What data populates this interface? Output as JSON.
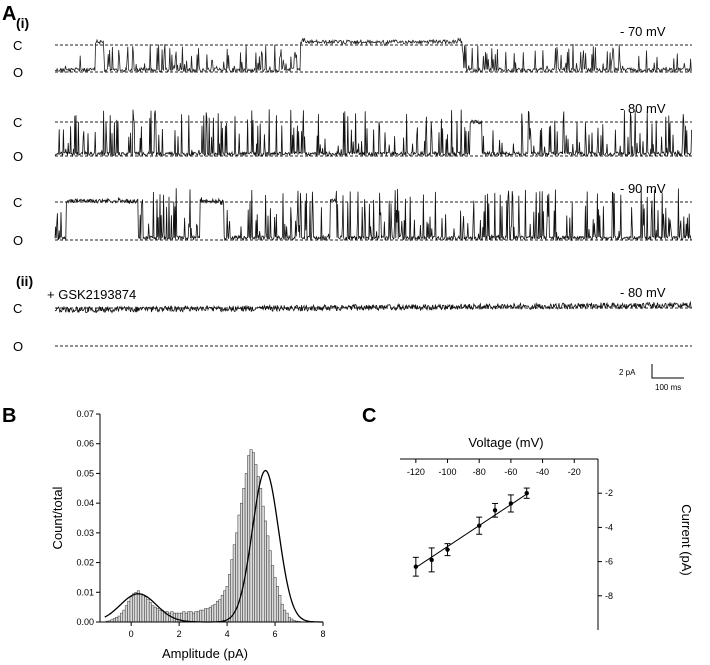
{
  "panels": {
    "a": "A",
    "a_i": "(i)",
    "a_ii": "(ii)",
    "b": "B",
    "c": "C"
  },
  "traces": [
    {
      "voltage": "- 70 mV",
      "closed": "C",
      "open": "O"
    },
    {
      "voltage": "- 80 mV",
      "closed": "C",
      "open": "O"
    },
    {
      "voltage": "- 90 mV",
      "closed": "C",
      "open": "O"
    },
    {
      "voltage": "- 80 mV",
      "closed": "C",
      "open": "O",
      "drug": "+ GSK2193874"
    }
  ],
  "scale_bar": {
    "current": "2 pA",
    "time": "100 ms"
  },
  "chart_data": [
    {
      "type": "bar",
      "panel": "B",
      "title": "",
      "xlabel": "Amplitude (pA)",
      "ylabel": "Count/total",
      "xlim": [
        -1.3,
        8
      ],
      "ylim": [
        0,
        0.07
      ],
      "x_ticks": [
        "0",
        "2",
        "4",
        "6",
        "8"
      ],
      "y_ticks": [
        "0.00",
        "0.01",
        "0.02",
        "0.03",
        "0.04",
        "0.05",
        "0.06",
        "0.07"
      ],
      "bins_x": [
        -1.0,
        -0.9,
        -0.8,
        -0.7,
        -0.6,
        -0.5,
        -0.4,
        -0.3,
        -0.2,
        -0.1,
        0.0,
        0.1,
        0.2,
        0.3,
        0.4,
        0.5,
        0.6,
        0.7,
        0.8,
        0.9,
        1.0,
        1.1,
        1.2,
        1.3,
        1.4,
        1.5,
        1.6,
        1.7,
        1.8,
        1.9,
        2.0,
        2.1,
        2.2,
        2.3,
        2.4,
        2.5,
        2.6,
        2.7,
        2.8,
        2.9,
        3.0,
        3.1,
        3.2,
        3.3,
        3.4,
        3.5,
        3.6,
        3.7,
        3.8,
        3.9,
        4.0,
        4.1,
        4.2,
        4.3,
        4.4,
        4.5,
        4.6,
        4.7,
        4.8,
        4.9,
        5.0,
        5.1,
        5.2,
        5.3,
        5.4,
        5.5,
        5.6,
        5.7,
        5.8,
        5.9,
        6.0,
        6.1,
        6.2,
        6.3,
        6.4,
        6.5,
        6.6,
        6.7,
        6.8,
        6.9,
        7.0,
        7.1,
        7.2,
        7.3
      ],
      "bins_y": [
        0.0003,
        0.0004,
        0.0008,
        0.0012,
        0.0016,
        0.002,
        0.003,
        0.004,
        0.0055,
        0.007,
        0.0085,
        0.0095,
        0.01,
        0.0105,
        0.0095,
        0.009,
        0.0085,
        0.0075,
        0.0065,
        0.0055,
        0.005,
        0.0045,
        0.004,
        0.004,
        0.0035,
        0.0035,
        0.003,
        0.0035,
        0.003,
        0.003,
        0.003,
        0.003,
        0.0035,
        0.003,
        0.0035,
        0.0035,
        0.003,
        0.0035,
        0.0035,
        0.004,
        0.004,
        0.0045,
        0.0045,
        0.005,
        0.0055,
        0.006,
        0.007,
        0.0075,
        0.009,
        0.0105,
        0.012,
        0.016,
        0.021,
        0.026,
        0.03,
        0.036,
        0.04,
        0.045,
        0.05,
        0.056,
        0.058,
        0.057,
        0.053,
        0.049,
        0.045,
        0.039,
        0.034,
        0.029,
        0.024,
        0.019,
        0.015,
        0.012,
        0.009,
        0.006,
        0.004,
        0.003,
        0.0015,
        0.001,
        0.0005,
        0.0003,
        0.0002,
        0.0001,
        0.0,
        0.0
      ],
      "fit": {
        "peaks": [
          {
            "mean": 0.3,
            "sd": 0.75,
            "height": 0.0095
          },
          {
            "mean": 5.6,
            "sd": 0.55,
            "height": 0.051
          }
        ]
      }
    },
    {
      "type": "line",
      "panel": "C",
      "title": "",
      "xlabel": "Voltage (mV)",
      "ylabel": "Current (pA)",
      "xlim": [
        -130,
        -5
      ],
      "ylim": [
        -10,
        0
      ],
      "x_ticks": [
        "-120",
        "-100",
        "-80",
        "-60",
        "-40",
        "-20"
      ],
      "y_ticks": [
        "-2",
        "-4",
        "-6",
        "-8"
      ],
      "x": [
        -120,
        -110,
        -100,
        -80,
        -70,
        -60,
        -50
      ],
      "y": [
        -6.3,
        -5.9,
        -5.3,
        -3.9,
        -3.0,
        -2.6,
        -2.0
      ],
      "error": [
        0.55,
        0.7,
        0.35,
        0.5,
        0.4,
        0.5,
        0.3
      ],
      "fit_line": {
        "x": [
          -120,
          -50
        ],
        "y": [
          -6.35,
          -2.05
        ]
      }
    }
  ]
}
